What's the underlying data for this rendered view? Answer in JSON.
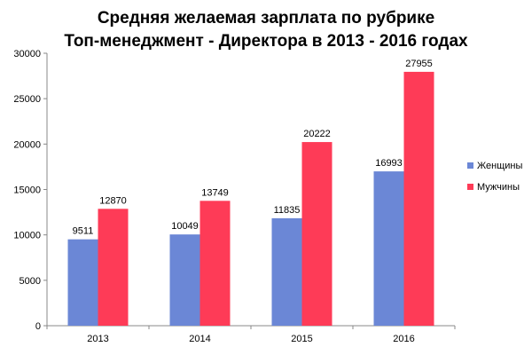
{
  "chart_data": {
    "type": "bar",
    "title": "Средняя желаемая зарплата по рубрике Топ-менеджмент - Директора в 2013 - 2016 годах",
    "title_lines": [
      "Средняя желаемая зарплата по рубрике",
      "Топ-менеджмент - Директора в 2013 - 2016 годах"
    ],
    "categories": [
      "2013",
      "2014",
      "2015",
      "2016"
    ],
    "series": [
      {
        "name": "Женщины",
        "color": "#6b87d6",
        "values": [
          9511,
          10049,
          11835,
          16993
        ]
      },
      {
        "name": "Мужчины",
        "color": "#fe3b57",
        "values": [
          12870,
          13749,
          20222,
          27955
        ]
      }
    ],
    "xlabel": "",
    "ylabel": "",
    "ylim": [
      0,
      30000
    ],
    "yticks": [
      0,
      5000,
      10000,
      15000,
      20000,
      25000,
      30000
    ],
    "grid": false,
    "legend_position": "right",
    "data_labels": true
  }
}
